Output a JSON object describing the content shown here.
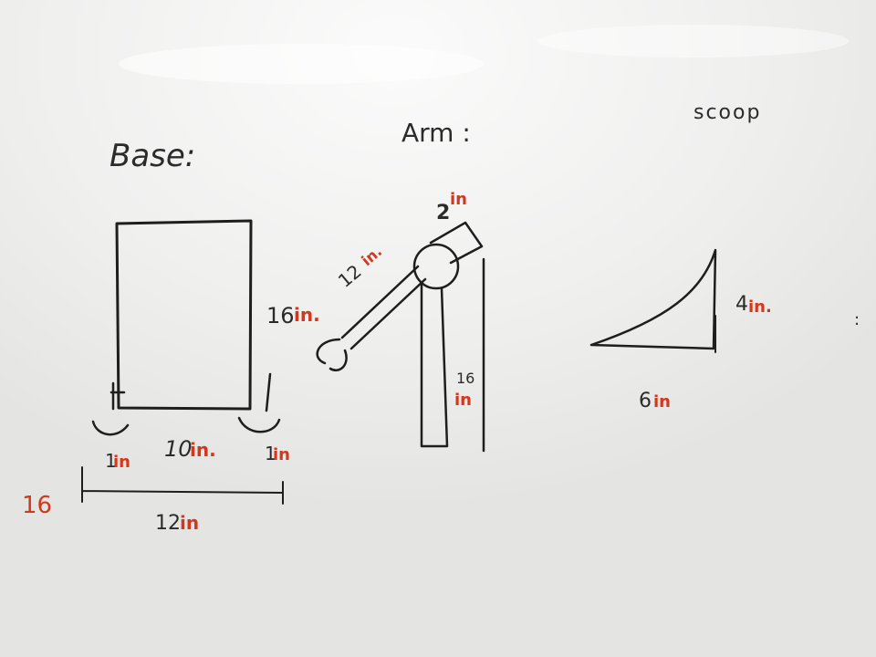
{
  "headings": {
    "base": "Base:",
    "arm": "Arm :",
    "scoop": "scoop"
  },
  "base": {
    "height_number": "16",
    "height_unit": "in.",
    "width_number": "10",
    "width_unit": "in.",
    "left_wheel": {
      "number": "1",
      "unit": "in"
    },
    "right_wheel": {
      "number": "1",
      "unit": "in"
    },
    "total_number": "12",
    "total_unit": "in",
    "side_note": "16"
  },
  "arm": {
    "upper_number": "12",
    "upper_unit": "in.",
    "joint_number": "2",
    "joint_unit": "in",
    "post_number": "16",
    "post_unit": "in"
  },
  "scoop": {
    "height_number": "4",
    "height_unit": "in.",
    "length_number": "6",
    "length_unit": "in"
  },
  "stray_mark": ":",
  "colors": {
    "board": "#f2f2f0",
    "marker_black": "#1e1e1e",
    "marker_red": "#d2381e"
  }
}
